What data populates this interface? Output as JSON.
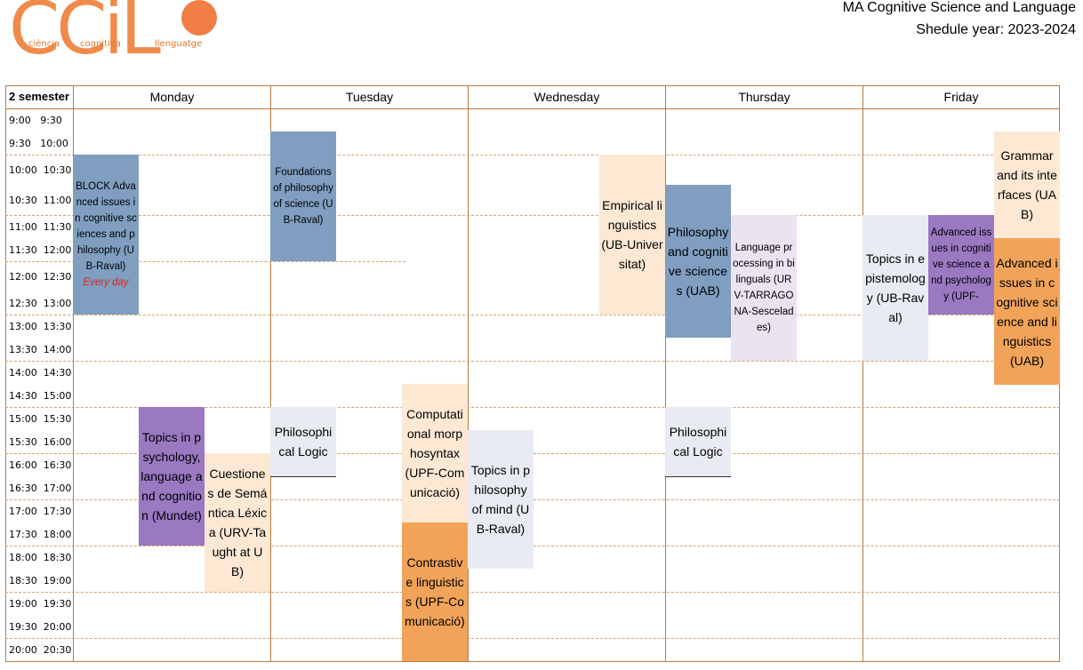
{
  "logo": {
    "big_text": "CCiL",
    "words": [
      "ciència",
      "cognitiva",
      "llenguatge"
    ]
  },
  "header": {
    "title": "MA Cognitive Science and Language",
    "subtitle": "Shedule year: 2023-2024"
  },
  "table": {
    "semester_label": "2 semester",
    "days": [
      "Monday",
      "Tuesday",
      "Wednesday",
      "Thursday",
      "Friday"
    ],
    "times": [
      "9:00   9:30",
      "9:30   10:00",
      "10:00  10:30",
      "10:30  11:00",
      "11:00  11:30",
      "11:30  12:00",
      "12:00  12:30",
      "12:30  13:00",
      "13:00  13:30",
      "13:30  14:00",
      "14:00  14:30",
      "14:30  15:00",
      "15:00  15:30",
      "15:30  16:00",
      "16:00  16:30",
      "16:30  17:00",
      "17:00  17:30",
      "17:30  18:00",
      "18:00  18:30",
      "18:30  19:00",
      "19:00  19:30",
      "19:30  20:00",
      "20:00  20:30"
    ]
  },
  "events": {
    "mon_block": {
      "text": "BLOCK Advanced issues in cognitive sciences and philosophy (UB-Raval)",
      "note": "Every day",
      "color": "#7f9ec0"
    },
    "mon_topics_psych": {
      "text": "Topics in psychology, language and cognition (Mundet)",
      "color": "#9a78c2"
    },
    "mon_cuestiones": {
      "text": "Cuestiones de Semántica Léxica (URV-Taught at UB)",
      "color": "#fde8d4"
    },
    "tue_foundations": {
      "text": "Foundations of philosophy of science (UB-Raval)",
      "color": "#7f9ec0"
    },
    "tue_phil_logic": {
      "text": "Philosophical Logic",
      "color": "#e8ebf1"
    },
    "tue_comp_morph": {
      "text": "Computational morphosyntax (UPF-Comunicació)",
      "color": "#fde8d4"
    },
    "tue_contrastive": {
      "text": "Contrastive linguistics (UPF-Comunicació)",
      "color": "#f1a35a"
    },
    "wed_empirical": {
      "text": "Empirical linguistics (UB-Universitat)",
      "color": "#fde8d4"
    },
    "wed_topics_mind": {
      "text": "Topics in philosophy of mind (UB-Raval)",
      "color": "#e8ebf1"
    },
    "thu_phil_cog": {
      "text": "Philosophy and cognitive sciences (UAB)",
      "color": "#7f9ec0"
    },
    "thu_lang_proc": {
      "text": "Language processing in bilinguals (URV-TARRAGONA-Sescelades)",
      "color": "#ebe2f2"
    },
    "thu_phil_logic": {
      "text": "Philosophical Logic",
      "color": "#e8ebf1"
    },
    "fri_topics_epist": {
      "text": "Topics in epistemology (UB-Raval)",
      "color": "#e8ebf1"
    },
    "fri_adv_psych": {
      "text": "Advanced issues in cognitive science and psychology (UPF-",
      "color": "#9a78c2"
    },
    "fri_grammar": {
      "text": "Grammar and its interfaces (UAB)",
      "color": "#fde8d4"
    },
    "fri_adv_ling": {
      "text": "Advanced issues in cognitive science and linguistics (UAB)",
      "color": "#f1a35a"
    }
  }
}
